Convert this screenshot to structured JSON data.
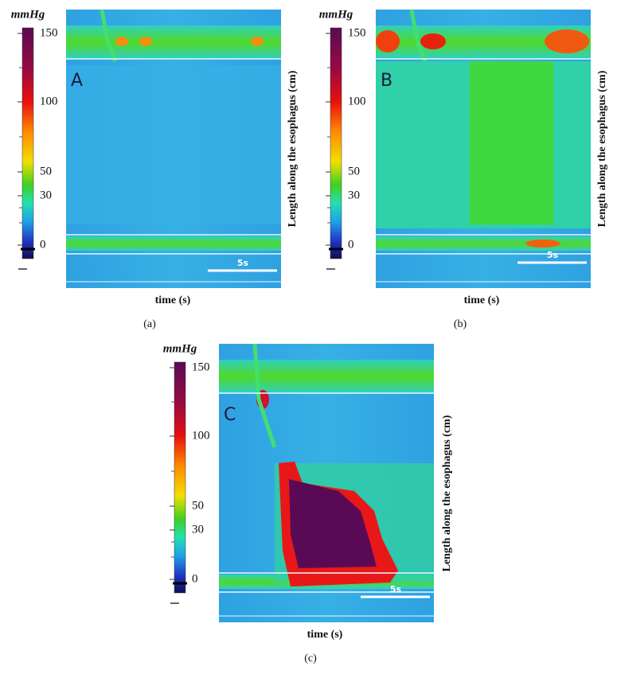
{
  "unit": "mmHg",
  "colorbar_ticks": [
    150,
    100,
    50,
    30,
    0
  ],
  "x_label": "time (s)",
  "y_label": "Length along the esophagus (cm)",
  "scale_bar": "5s",
  "panels": [
    {
      "letter": "A",
      "caption": "(a)"
    },
    {
      "letter": "B",
      "caption": "(b)"
    },
    {
      "letter": "C",
      "caption": "(c)"
    }
  ]
}
